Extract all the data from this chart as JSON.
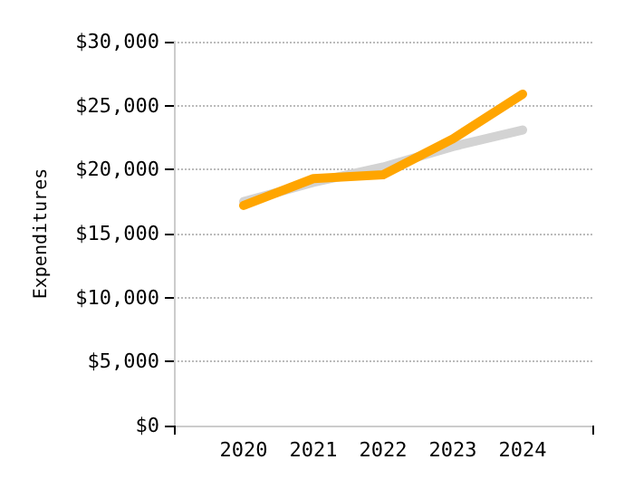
{
  "chart_data": {
    "type": "line",
    "ylabel": "Expenditures",
    "x": [
      2020,
      2021,
      2022,
      2023,
      2024
    ],
    "series": [
      {
        "color": "#d3d3d3",
        "values": [
          17500,
          19000,
          20200,
          21800,
          23100
        ]
      },
      {
        "color": "#ffa500",
        "values": [
          17200,
          19300,
          19600,
          22400,
          25900
        ]
      }
    ],
    "xlim": [
      2019,
      2025
    ],
    "xticks": [
      2020,
      2021,
      2022,
      2023,
      2024
    ],
    "ylim": [
      0,
      30000
    ],
    "yticks": [
      {
        "value": 0,
        "label": "$0"
      },
      {
        "value": 5000,
        "label": "$5,000"
      },
      {
        "value": 10000,
        "label": "$10,000"
      },
      {
        "value": 15000,
        "label": "$15,000"
      },
      {
        "value": 20000,
        "label": "$20,000"
      },
      {
        "value": 25000,
        "label": "$25,000"
      },
      {
        "value": 30000,
        "label": "$30,000"
      }
    ],
    "grid": "y",
    "marker": "none"
  }
}
